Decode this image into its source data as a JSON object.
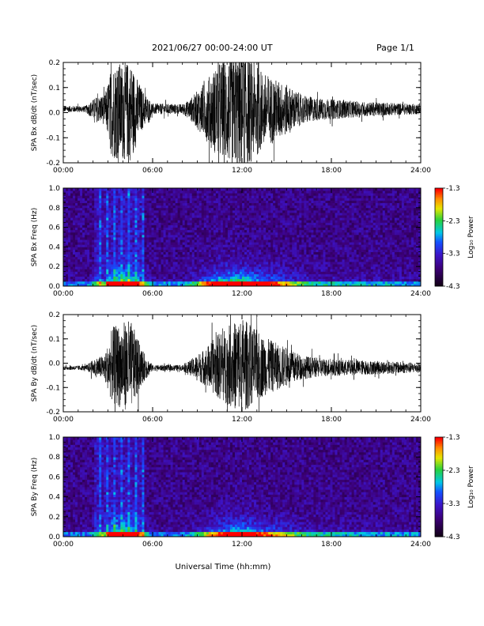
{
  "header": {
    "title": "2021/06/27  00:00-24:00 UT",
    "page": "Page 1/1"
  },
  "xlabel": "Universal Time (hh:mm)",
  "chart_data": [
    {
      "type": "line",
      "ylabel": "SPA Bx dB/dt (nT/sec)",
      "xlim": [
        0,
        24
      ],
      "ylim": [
        -0.2,
        0.2
      ],
      "xticks": [
        "00:00",
        "06:00",
        "12:00",
        "18:00",
        "24:00"
      ],
      "yticks": [
        "0.2",
        "0.1",
        "0.0",
        "-0.1",
        "-0.2"
      ],
      "offset": 0.015,
      "envelope": [
        [
          0,
          0.012
        ],
        [
          1.5,
          0.013
        ],
        [
          2.2,
          0.05
        ],
        [
          2.8,
          0.06
        ],
        [
          3.3,
          0.19
        ],
        [
          4.5,
          0.2
        ],
        [
          5.3,
          0.08
        ],
        [
          6,
          0.022
        ],
        [
          8,
          0.02
        ],
        [
          8.5,
          0.04
        ],
        [
          9.6,
          0.12
        ],
        [
          10.5,
          0.2
        ],
        [
          12,
          0.24
        ],
        [
          13.5,
          0.15
        ],
        [
          15,
          0.1
        ],
        [
          16,
          0.06
        ],
        [
          17,
          0.045
        ],
        [
          18,
          0.04
        ],
        [
          20,
          0.03
        ],
        [
          22,
          0.025
        ],
        [
          24,
          0.02
        ]
      ]
    },
    {
      "type": "heatmap",
      "ylabel": "SPA Bx Freq (Hz)",
      "xlim": [
        0,
        24
      ],
      "ylim": [
        0.0,
        1.0
      ],
      "xticks": [
        "00:00",
        "06:00",
        "12:00",
        "18:00",
        "24:00"
      ],
      "yticks": [
        "1.0",
        "0.8",
        "0.6",
        "0.4",
        "0.2",
        "0.0"
      ],
      "colorbar": {
        "label": "Log₁₀ Power",
        "range": [
          -4.3,
          -1.3
        ],
        "ticks": [
          "-1.3",
          "-2.3",
          "-3.3",
          "-4.3"
        ]
      }
    },
    {
      "type": "line",
      "ylabel": "SPA By dB/dt (nT/sec)",
      "xlim": [
        0,
        24
      ],
      "ylim": [
        -0.2,
        0.2
      ],
      "xticks": [
        "00:00",
        "06:00",
        "12:00",
        "18:00",
        "24:00"
      ],
      "yticks": [
        "0.2",
        "0.1",
        "0.0",
        "-0.1",
        "-0.2"
      ],
      "offset": -0.02,
      "envelope": [
        [
          0,
          0.008
        ],
        [
          1.5,
          0.01
        ],
        [
          2.2,
          0.04
        ],
        [
          2.8,
          0.05
        ],
        [
          3.3,
          0.16
        ],
        [
          4.5,
          0.19
        ],
        [
          5.3,
          0.07
        ],
        [
          6,
          0.012
        ],
        [
          8,
          0.012
        ],
        [
          8.5,
          0.03
        ],
        [
          9.6,
          0.08
        ],
        [
          10.5,
          0.14
        ],
        [
          12,
          0.2
        ],
        [
          13.5,
          0.12
        ],
        [
          15,
          0.08
        ],
        [
          16,
          0.05
        ],
        [
          17,
          0.04
        ],
        [
          18,
          0.035
        ],
        [
          20,
          0.03
        ],
        [
          22,
          0.025
        ],
        [
          24,
          0.02
        ]
      ]
    },
    {
      "type": "heatmap",
      "ylabel": "SPA By Freq (Hz)",
      "xlim": [
        0,
        24
      ],
      "ylim": [
        0.0,
        1.0
      ],
      "xticks": [
        "00:00",
        "06:00",
        "12:00",
        "18:00",
        "24:00"
      ],
      "yticks": [
        "1.0",
        "0.8",
        "0.6",
        "0.4",
        "0.2",
        "0.0"
      ],
      "colorbar": {
        "label": "Log₁₀ Power",
        "range": [
          -4.3,
          -1.3
        ],
        "ticks": [
          "-1.3",
          "-2.3",
          "-3.3",
          "-4.3"
        ]
      }
    }
  ]
}
